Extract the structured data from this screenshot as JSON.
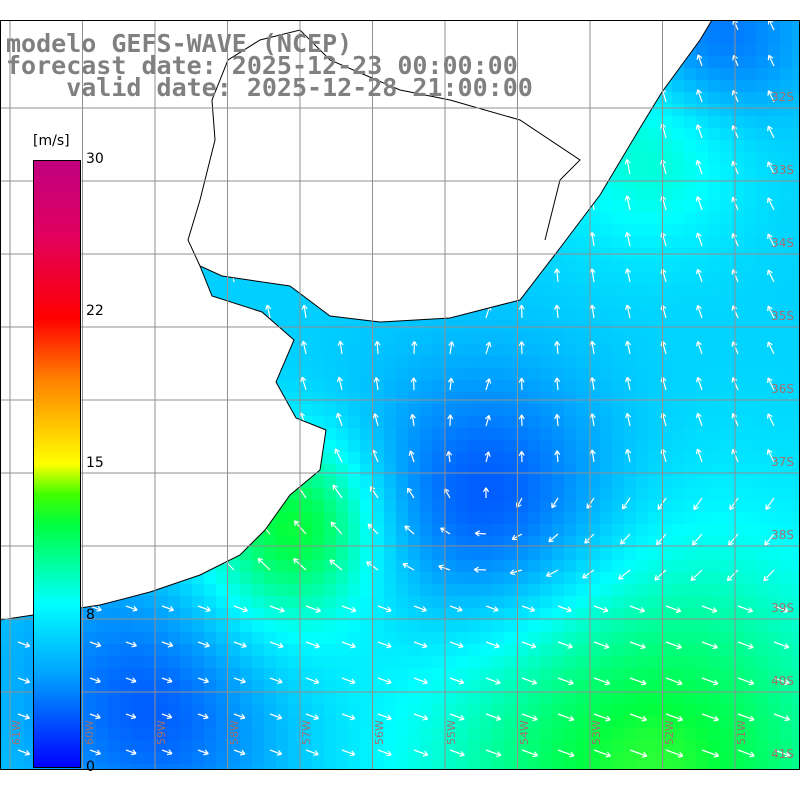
{
  "title": {
    "line1": "modelo GEFS-WAVE (NCEP)",
    "line2": "forecast date: 2025-12-23 00:00:00",
    "line3": "    valid date: 2025-12-28 21:00:00"
  },
  "colorbar": {
    "unit": "[m/s]",
    "labels": [
      "30",
      "22",
      "15",
      "8",
      "0"
    ],
    "range": [
      0,
      30
    ]
  },
  "lat_labels": [
    "32S",
    "33S",
    "34S",
    "35S",
    "36S",
    "37S",
    "38S",
    "39S",
    "40S",
    "41S"
  ],
  "lon_labels": [
    "61W",
    "60W",
    "59W",
    "58W",
    "57W",
    "56W",
    "55W",
    "54W",
    "53W",
    "52W",
    "51W"
  ],
  "colors": {
    "land": "#ffffff",
    "coast": "#000000",
    "grid": "#909090",
    "arrow": "#ffffff"
  }
}
